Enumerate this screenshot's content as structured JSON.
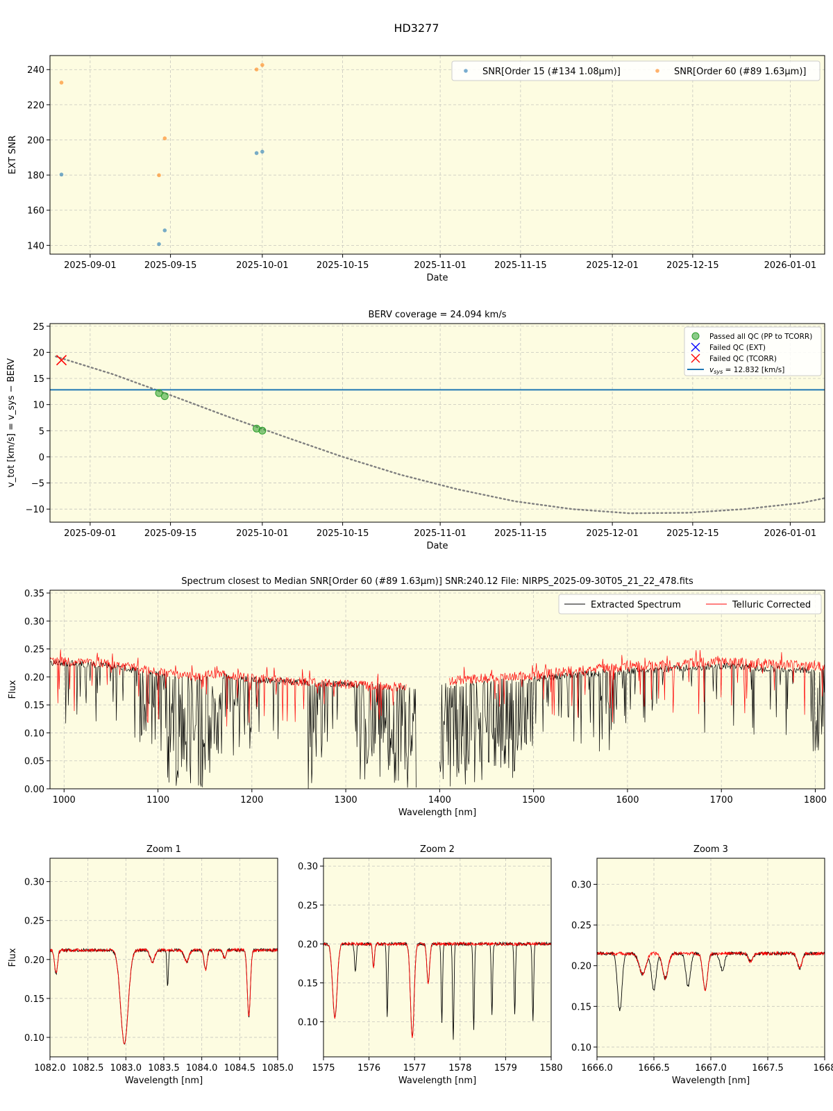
{
  "suptitle": "HD3277",
  "colors": {
    "axes_bg": "#fdfce1",
    "snr_order15": "#1f77b4",
    "snr_order60": "#ff7f0e",
    "vsys_line": "#1f77b4",
    "berv_curve": "#808080",
    "passed_qc": "#2ca02c",
    "failed_ext": "#0000ff",
    "failed_tcorr": "#ff0000",
    "extracted": "#000000",
    "telluric": "#ff0000",
    "grid": "#b0b0b0"
  },
  "chart_data": [
    {
      "id": "snr",
      "type": "scatter",
      "title": "",
      "xlabel": "Date",
      "ylabel": "EXT SNR",
      "x_type": "date",
      "xlim": [
        "2025-08-25",
        "2026-01-07"
      ],
      "ylim": [
        135,
        248
      ],
      "xticks": [
        "2025-09-01",
        "2025-09-15",
        "2025-10-01",
        "2025-10-15",
        "2025-11-01",
        "2025-11-15",
        "2025-12-01",
        "2025-12-15",
        "2026-01-01"
      ],
      "yticks": [
        140,
        160,
        180,
        200,
        220,
        240
      ],
      "grid": true,
      "legend_position": "top-right",
      "series": [
        {
          "name": "SNR[Order 15 (#134 1.08μm)]",
          "x": [
            "2025-08-27",
            "2025-09-13",
            "2025-09-14",
            "2025-09-30",
            "2025-10-01"
          ],
          "y": [
            180.3,
            140.7,
            148.5,
            192.5,
            193.3
          ]
        },
        {
          "name": "SNR[Order 60 (#89 1.63μm)]",
          "x": [
            "2025-08-27",
            "2025-09-13",
            "2025-09-14",
            "2025-09-30",
            "2025-10-01"
          ],
          "y": [
            232.6,
            179.9,
            200.9,
            240.1,
            242.6
          ]
        }
      ]
    },
    {
      "id": "berv",
      "type": "line",
      "title": "BERV coverage = 24.094 km/s",
      "xlabel": "Date",
      "ylabel": "v_tot [km/s] = v_sys − BERV",
      "x_type": "date",
      "xlim": [
        "2025-08-25",
        "2026-01-07"
      ],
      "ylim": [
        -12.5,
        25.5
      ],
      "xticks": [
        "2025-09-01",
        "2025-09-15",
        "2025-10-01",
        "2025-10-15",
        "2025-11-01",
        "2025-11-15",
        "2025-12-01",
        "2025-12-15",
        "2026-01-01"
      ],
      "yticks": [
        -10,
        -5,
        0,
        5,
        10,
        15,
        20,
        25
      ],
      "grid": true,
      "legend_position": "top-right",
      "berv_curve": {
        "x": [
          "2025-08-26",
          "2025-09-05",
          "2025-09-15",
          "2025-09-25",
          "2025-10-05",
          "2025-10-15",
          "2025-10-25",
          "2025-11-04",
          "2025-11-14",
          "2025-11-24",
          "2025-12-04",
          "2025-12-14",
          "2025-12-24",
          "2026-01-03",
          "2026-01-07"
        ],
        "y": [
          19.2,
          15.8,
          11.8,
          7.7,
          3.8,
          0.0,
          -3.4,
          -6.2,
          -8.5,
          -10.0,
          -10.8,
          -10.7,
          -10.0,
          -8.8,
          -7.9
        ]
      },
      "vsys": 12.832,
      "passed_points": {
        "x": [
          "2025-09-13",
          "2025-09-14",
          "2025-09-30",
          "2025-10-01"
        ],
        "y": [
          12.2,
          11.6,
          5.4,
          5.0
        ]
      },
      "failed_tcorr_points": {
        "x": [
          "2025-08-27"
        ],
        "y": [
          18.5
        ]
      },
      "legend": {
        "passed": "Passed all QC (PP to TCORR)",
        "failed_ext": "Failed QC (EXT)",
        "failed_tcorr": "Failed QC (TCORR)",
        "vsys_prefix": "v",
        "vsys_sub": "sys",
        "vsys_suffix": " = 12.832 [km/s]"
      }
    },
    {
      "id": "spectrum",
      "type": "line",
      "title": "Spectrum closest to Median SNR[Order 60 (#89 1.63μm)]     SNR:240.12     File: NIRPS_2025-09-30T05_21_22_478.fits",
      "xlabel": "Wavelength [nm]",
      "ylabel": "Flux",
      "xlim": [
        985,
        1810
      ],
      "ylim": [
        0.0,
        0.355
      ],
      "xticks": [
        1000,
        1100,
        1200,
        1300,
        1400,
        1500,
        1600,
        1700,
        1800
      ],
      "yticks": [
        0.0,
        0.05,
        0.1,
        0.15,
        0.2,
        0.25,
        0.3,
        0.35
      ],
      "legend_position": "top-right",
      "series": [
        {
          "name": "Extracted Spectrum",
          "continuum": [
            [
              985,
              0.225
            ],
            [
              1040,
              0.222
            ],
            [
              1080,
              0.21
            ],
            [
              1100,
              0.205
            ],
            [
              1140,
              0.195
            ],
            [
              1160,
              0.205
            ],
            [
              1200,
              0.195
            ],
            [
              1260,
              0.19
            ],
            [
              1320,
              0.185
            ],
            [
              1370,
              0.18
            ],
            [
              1410,
              0.185
            ],
            [
              1450,
              0.19
            ],
            [
              1500,
              0.195
            ],
            [
              1550,
              0.205
            ],
            [
              1600,
              0.21
            ],
            [
              1650,
              0.215
            ],
            [
              1700,
              0.22
            ],
            [
              1750,
              0.215
            ],
            [
              1810,
              0.21
            ]
          ],
          "gaps": [
            [
              1375,
              1400
            ]
          ]
        },
        {
          "name": "Telluric Corrected",
          "continuum": [
            [
              985,
              0.228
            ],
            [
              1040,
              0.225
            ],
            [
              1080,
              0.215
            ],
            [
              1100,
              0.21
            ],
            [
              1140,
              0.2
            ],
            [
              1160,
              0.205
            ],
            [
              1200,
              0.198
            ],
            [
              1260,
              0.19
            ],
            [
              1320,
              0.185
            ],
            [
              1365,
              0.182
            ]
          ],
          "gaps": [
            [
              1365,
              1410
            ]
          ]
        }
      ]
    },
    {
      "id": "zoom1",
      "type": "line",
      "title": "Zoom 1",
      "xlabel": "Wavelength [nm]",
      "ylabel": "Flux",
      "xlim": [
        1082.0,
        1085.0
      ],
      "ylim": [
        0.075,
        0.33
      ],
      "xticks": [
        1082.0,
        1082.5,
        1083.0,
        1083.5,
        1084.0,
        1084.5,
        1085.0
      ],
      "xtick_labels": [
        "1082.0",
        "1082.5",
        "1083.0",
        "1083.5",
        "1084.0",
        "1084.5",
        "1085.0"
      ],
      "yticks": [
        0.1,
        0.15,
        0.2,
        0.25,
        0.3
      ],
      "continuum": 0.212,
      "lines": [
        {
          "c": 1082.08,
          "d": 0.03,
          "w": 0.02,
          "s": "both"
        },
        {
          "c": 1082.98,
          "d": 0.12,
          "w": 0.05,
          "s": "both"
        },
        {
          "c": 1083.35,
          "d": 0.015,
          "w": 0.03,
          "s": "both"
        },
        {
          "c": 1083.55,
          "d": 0.045,
          "w": 0.01,
          "s": "ext"
        },
        {
          "c": 1083.8,
          "d": 0.015,
          "w": 0.03,
          "s": "both"
        },
        {
          "c": 1084.05,
          "d": 0.025,
          "w": 0.02,
          "s": "both"
        },
        {
          "c": 1084.3,
          "d": 0.01,
          "w": 0.02,
          "s": "both"
        },
        {
          "c": 1084.62,
          "d": 0.085,
          "w": 0.02,
          "s": "both"
        }
      ]
    },
    {
      "id": "zoom2",
      "type": "line",
      "title": "Zoom 2",
      "xlabel": "Wavelength [nm]",
      "ylabel": "",
      "xlim": [
        1575,
        1580
      ],
      "ylim": [
        0.055,
        0.31
      ],
      "xticks": [
        1575,
        1576,
        1577,
        1578,
        1579,
        1580
      ],
      "xtick_labels": [
        "1575",
        "1576",
        "1577",
        "1578",
        "1579",
        "1580"
      ],
      "yticks": [
        0.1,
        0.15,
        0.2,
        0.25,
        0.3
      ],
      "continuum": 0.2,
      "lines": [
        {
          "c": 1575.25,
          "d": 0.095,
          "w": 0.05,
          "s": "both"
        },
        {
          "c": 1575.7,
          "d": 0.035,
          "w": 0.02,
          "s": "ext"
        },
        {
          "c": 1576.1,
          "d": 0.03,
          "w": 0.02,
          "s": "both"
        },
        {
          "c": 1576.4,
          "d": 0.095,
          "w": 0.015,
          "s": "ext"
        },
        {
          "c": 1576.95,
          "d": 0.12,
          "w": 0.04,
          "s": "both"
        },
        {
          "c": 1577.3,
          "d": 0.05,
          "w": 0.03,
          "s": "both"
        },
        {
          "c": 1577.6,
          "d": 0.1,
          "w": 0.015,
          "s": "ext"
        },
        {
          "c": 1577.85,
          "d": 0.125,
          "w": 0.015,
          "s": "ext"
        },
        {
          "c": 1578.3,
          "d": 0.11,
          "w": 0.015,
          "s": "ext"
        },
        {
          "c": 1578.7,
          "d": 0.09,
          "w": 0.015,
          "s": "ext"
        },
        {
          "c": 1579.2,
          "d": 0.09,
          "w": 0.015,
          "s": "ext"
        },
        {
          "c": 1579.6,
          "d": 0.1,
          "w": 0.015,
          "s": "ext"
        }
      ]
    },
    {
      "id": "zoom3",
      "type": "line",
      "title": "Zoom 3",
      "xlabel": "Wavelength [nm]",
      "ylabel": "",
      "xlim": [
        1666.0,
        1668.0
      ],
      "ylim": [
        0.088,
        0.332
      ],
      "xticks": [
        1666.0,
        1666.5,
        1667.0,
        1667.5,
        1668.0
      ],
      "xtick_labels": [
        "1666.0",
        "1666.5",
        "1667.0",
        "1667.5",
        "1668"
      ],
      "yticks": [
        0.1,
        0.15,
        0.2,
        0.25,
        0.3
      ],
      "continuum": 0.215,
      "lines": [
        {
          "c": 1666.2,
          "d": 0.07,
          "w": 0.02,
          "s": "ext"
        },
        {
          "c": 1666.4,
          "d": 0.025,
          "w": 0.03,
          "s": "both"
        },
        {
          "c": 1666.5,
          "d": 0.045,
          "w": 0.02,
          "s": "ext"
        },
        {
          "c": 1666.6,
          "d": 0.03,
          "w": 0.025,
          "s": "both"
        },
        {
          "c": 1666.8,
          "d": 0.04,
          "w": 0.02,
          "s": "ext"
        },
        {
          "c": 1666.95,
          "d": 0.045,
          "w": 0.02,
          "s": "both"
        },
        {
          "c": 1667.1,
          "d": 0.02,
          "w": 0.02,
          "s": "ext"
        },
        {
          "c": 1667.35,
          "d": 0.01,
          "w": 0.02,
          "s": "both"
        },
        {
          "c": 1667.78,
          "d": 0.018,
          "w": 0.02,
          "s": "both"
        }
      ]
    }
  ]
}
